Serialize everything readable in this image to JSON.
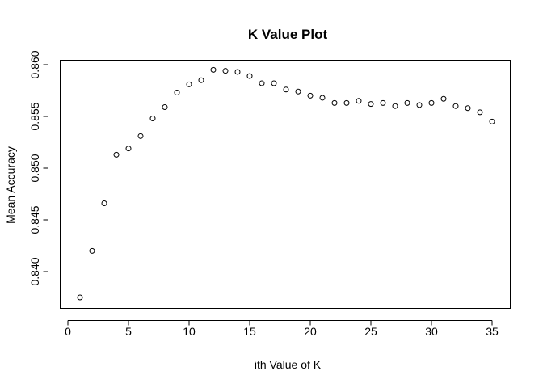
{
  "chart_data": {
    "type": "scatter",
    "title": "K Value Plot",
    "xlabel": "ith Value of K",
    "ylabel": "Mean Accuracy",
    "xlim": [
      0,
      36
    ],
    "ylim": [
      0.8375,
      0.8605
    ],
    "xticks": [
      0,
      5,
      10,
      15,
      20,
      25,
      30,
      35
    ],
    "xtick_labels": [
      "0",
      "5",
      "10",
      "15",
      "20",
      "25",
      "30",
      "35"
    ],
    "yticks": [
      0.84,
      0.845,
      0.85,
      0.855,
      0.86
    ],
    "ytick_labels": [
      "0.840",
      "0.845",
      "0.850",
      "0.855",
      "0.860"
    ],
    "grid": false,
    "marker": "open-circle",
    "x": [
      1,
      2,
      3,
      4,
      5,
      6,
      7,
      8,
      9,
      10,
      11,
      12,
      13,
      14,
      15,
      16,
      17,
      18,
      19,
      20,
      21,
      22,
      23,
      24,
      25,
      26,
      27,
      28,
      29,
      30,
      31,
      32,
      33,
      34,
      35
    ],
    "y": [
      0.8375,
      0.842,
      0.8466,
      0.8513,
      0.8519,
      0.8531,
      0.8548,
      0.8559,
      0.8573,
      0.8581,
      0.8585,
      0.8595,
      0.8594,
      0.8593,
      0.8589,
      0.8582,
      0.8582,
      0.8576,
      0.8574,
      0.857,
      0.8568,
      0.8563,
      0.8563,
      0.8565,
      0.8562,
      0.8563,
      0.856,
      0.8563,
      0.8561,
      0.8563,
      0.8567,
      0.856,
      0.8558,
      0.8554,
      0.8545
    ]
  }
}
